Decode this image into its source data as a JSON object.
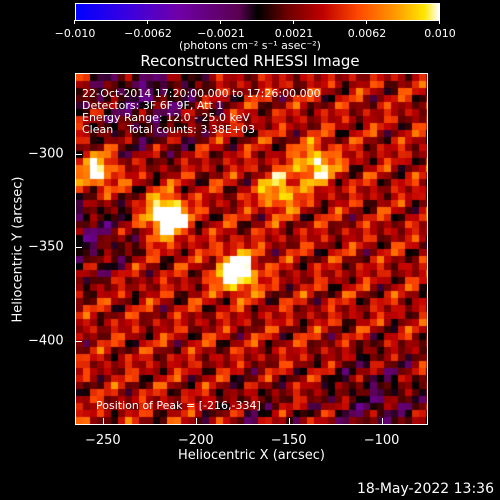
{
  "colorbar": {
    "ticks": [
      "−0.010",
      "−0.0062",
      "−0.0021",
      "0.0021",
      "0.0062",
      "0.010"
    ],
    "unit": "(photons cm⁻² s⁻¹ asec⁻²)"
  },
  "title": "Reconstructed RHESSI Image",
  "info": {
    "line1": "22-Oct-2014 17:20:00.000 to 17:26:00.000",
    "line2": "Detectors: 3F 6F 9F, Att 1",
    "line3": "Energy Range: 12.0 - 25.0 keV",
    "line4": "Clean    Total counts: 3.38E+03",
    "peak": "Position of Peak = [-216,-334]"
  },
  "axes": {
    "xlabel": "Heliocentric X (arcsec)",
    "ylabel": "Heliocentric Y (arcsec)",
    "xticks": [
      "−250",
      "−200",
      "−150",
      "−100"
    ],
    "yticks": [
      "−300",
      "−350",
      "−400"
    ]
  },
  "timestamp": "18-May-2022 13:36",
  "chart_data": {
    "type": "heatmap",
    "title": "Reconstructed RHESSI Image",
    "xlabel": "Heliocentric X (arcsec)",
    "ylabel": "Heliocentric Y (arcsec)",
    "xlim": [
      -265,
      -75
    ],
    "ylim": [
      -445,
      -257
    ],
    "colorbar_range": [
      -0.01,
      0.01
    ],
    "colormap": "blue-purple-black-red-orange-yellow-white",
    "peak": [
      -216,
      -334
    ],
    "bright_spots": [
      [
        -216,
        -334
      ],
      [
        -178,
        -363
      ],
      [
        -253,
        -310
      ],
      [
        -135,
        -306
      ],
      [
        -155,
        -320
      ]
    ]
  }
}
